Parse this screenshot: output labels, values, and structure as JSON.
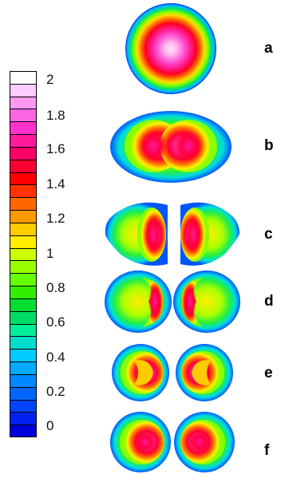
{
  "colorbar": {
    "ticks": [
      "2",
      "1.8",
      "1.6",
      "1.4",
      "1.2",
      "1",
      "0.8",
      "0.6",
      "0.4",
      "0.2",
      "0"
    ],
    "colors_top_to_bottom": [
      "#ffffff",
      "#ffccff",
      "#ff99f0",
      "#ff66e6",
      "#ff33cc",
      "#ff1a99",
      "#ff0066",
      "#ff0033",
      "#ff0000",
      "#ff3300",
      "#ff6600",
      "#ff9900",
      "#ffcc00",
      "#ffee00",
      "#ccff00",
      "#99ff00",
      "#66ff00",
      "#33ee00",
      "#00dd33",
      "#00dd66",
      "#00ee99",
      "#00ddcc",
      "#00ccff",
      "#00aaff",
      "#0088ff",
      "#0066ff",
      "#0044ff",
      "#0022ee",
      "#0000dd"
    ]
  },
  "panels": [
    {
      "label": "a"
    },
    {
      "label": "b"
    },
    {
      "label": "c"
    },
    {
      "label": "d"
    },
    {
      "label": "e"
    },
    {
      "label": "f"
    }
  ]
}
